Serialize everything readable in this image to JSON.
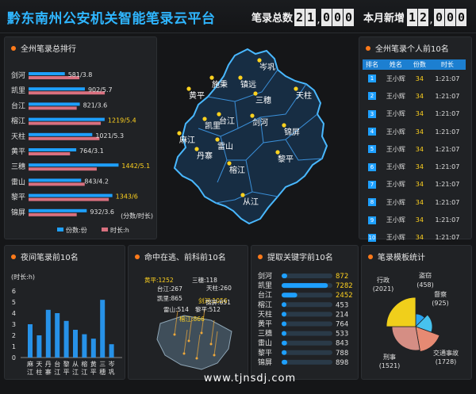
{
  "header": {
    "title": "黔东南州公安机关智能笔录云平台",
    "total_label": "笔录总数",
    "total_digits": [
      "2",
      "1",
      "0",
      "0",
      "0"
    ],
    "new_label": "本月新增",
    "new_digits": [
      "1",
      "2",
      "0",
      "0",
      "0"
    ]
  },
  "colors": {
    "accent_blue": "#1ea0ff",
    "accent_red": "#d8707f",
    "accent_yellow": "#ffd21f",
    "accent_orange": "#ff7a1a"
  },
  "county_rank": {
    "title": "全州笔录总排行",
    "legend_count": "份数:份",
    "legend_time": "时长:h",
    "unit_note": "(分数/时长)",
    "rows": [
      {
        "name": "剑河",
        "label": "581/3.8",
        "count": 581,
        "hours": 3.8,
        "highlight": false
      },
      {
        "name": "凯里",
        "label": "902/5.7",
        "count": 902,
        "hours": 5.7,
        "highlight": false
      },
      {
        "name": "台江",
        "label": "821/3.6",
        "count": 821,
        "hours": 3.6,
        "highlight": false
      },
      {
        "name": "榕江",
        "label": "1219/5.4",
        "count": 1219,
        "hours": 5.4,
        "highlight": true
      },
      {
        "name": "天柱",
        "label": "1021/5.3",
        "count": 1021,
        "hours": 5.3,
        "highlight": false
      },
      {
        "name": "黄平",
        "label": "764/3.1",
        "count": 764,
        "hours": 3.1,
        "highlight": false
      },
      {
        "name": "三穗",
        "label": "1442/5.1",
        "count": 1442,
        "hours": 5.1,
        "highlight": true
      },
      {
        "name": "雷山",
        "label": "843/4.2",
        "count": 843,
        "hours": 4.2,
        "highlight": false
      },
      {
        "name": "黎平",
        "label": "1343/6",
        "count": 1343,
        "hours": 6,
        "highlight": true
      },
      {
        "name": "锦屏",
        "label": "932/3.6",
        "count": 932,
        "hours": 3.6,
        "highlight": false
      }
    ]
  },
  "map": {
    "labels": [
      "岑巩",
      "镇远",
      "施秉",
      "黄平",
      "三穗",
      "天柱",
      "台江",
      "凯里",
      "剑河",
      "锦屏",
      "麻江",
      "雷山",
      "丹寨",
      "黎平",
      "榕江",
      "从江"
    ]
  },
  "top10": {
    "title": "全州笔录个人前10名",
    "headers": [
      "排名",
      "姓名",
      "份数",
      "时长"
    ],
    "rows": [
      {
        "rank": "1",
        "name": "王小辉",
        "count": "34",
        "time": "1:21:07"
      },
      {
        "rank": "2",
        "name": "王小辉",
        "count": "34",
        "time": "1:21:07"
      },
      {
        "rank": "3",
        "name": "王小辉",
        "count": "34",
        "time": "1:21:07"
      },
      {
        "rank": "4",
        "name": "王小辉",
        "count": "34",
        "time": "1:21:07"
      },
      {
        "rank": "5",
        "name": "王小辉",
        "count": "34",
        "time": "1:21:07"
      },
      {
        "rank": "6",
        "name": "王小辉",
        "count": "34",
        "time": "1:21:07"
      },
      {
        "rank": "7",
        "name": "王小辉",
        "count": "34",
        "time": "1:21:07"
      },
      {
        "rank": "8",
        "name": "王小辉",
        "count": "34",
        "time": "1:21:07"
      },
      {
        "rank": "9",
        "name": "王小辉",
        "count": "34",
        "time": "1:21:07"
      },
      {
        "rank": "10",
        "name": "王小辉",
        "count": "34",
        "time": "1:21:07"
      }
    ]
  },
  "night": {
    "title": "夜间笔录前10名",
    "ylabel": "(时长:h)",
    "ticks": [
      "0",
      "1",
      "2",
      "3",
      "4",
      "5",
      "6"
    ],
    "categories": [
      "麻江",
      "天柱",
      "丹寨",
      "台江",
      "黎平",
      "从江",
      "榕江",
      "黄平",
      "三穗",
      "岑巩"
    ]
  },
  "hits": {
    "title": "命中在逃、前科前10名",
    "labels": [
      {
        "text": "黄平:1252",
        "highlight": true
      },
      {
        "text": "三穗:118",
        "highlight": false
      },
      {
        "text": "台江:267",
        "highlight": false
      },
      {
        "text": "天柱:260",
        "highlight": false
      },
      {
        "text": "凯里:865",
        "highlight": false
      },
      {
        "text": "剑河:1056",
        "highlight": true
      },
      {
        "text": "锦屏:651",
        "highlight": false
      },
      {
        "text": "雷山:514",
        "highlight": false
      },
      {
        "text": "黎平:512",
        "highlight": false
      },
      {
        "text": "榕江:866",
        "highlight": true
      }
    ]
  },
  "keywords": {
    "title": "提取关键字前10名",
    "max": 8000,
    "rows": [
      {
        "name": "剑河",
        "value": "872",
        "num": 872,
        "highlight": true
      },
      {
        "name": "凯里",
        "value": "7282",
        "num": 7282,
        "highlight": true
      },
      {
        "name": "台江",
        "value": "2452",
        "num": 2452,
        "highlight": true
      },
      {
        "name": "榕江",
        "value": "453",
        "num": 453,
        "highlight": false
      },
      {
        "name": "天柱",
        "value": "214",
        "num": 214,
        "highlight": false
      },
      {
        "name": "黄平",
        "value": "764",
        "num": 764,
        "highlight": false
      },
      {
        "name": "三穗",
        "value": "533",
        "num": 533,
        "highlight": false
      },
      {
        "name": "雷山",
        "value": "843",
        "num": 843,
        "highlight": false
      },
      {
        "name": "黎平",
        "value": "788",
        "num": 788,
        "highlight": false
      },
      {
        "name": "锦屏",
        "value": "898",
        "num": 898,
        "highlight": false
      }
    ]
  },
  "templates": {
    "title": "笔录模板统计",
    "items": [
      {
        "name": "盗窃",
        "value": "(458)"
      },
      {
        "name": "督察",
        "value": "(925)"
      },
      {
        "name": "交通事故",
        "value": "(1728)"
      },
      {
        "name": "刑事",
        "value": "(1521)"
      },
      {
        "name": "行政",
        "value": "(2021)"
      }
    ]
  },
  "footer": {
    "watermark": "www.tjnsdj.com"
  }
}
